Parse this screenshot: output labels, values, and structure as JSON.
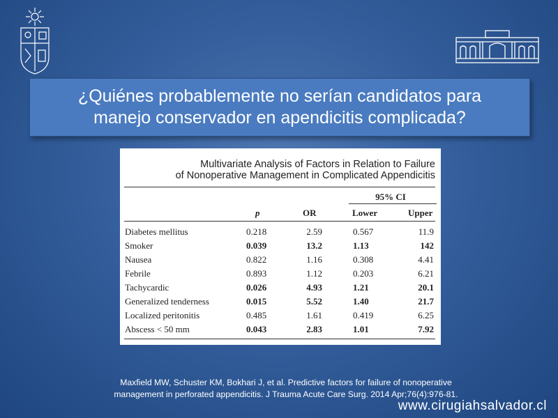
{
  "slide": {
    "title": "¿Quiénes probablemente no serían candidatos para\nmanejo conservador en apendicitis complicada?",
    "citation": "Maxfield MW, Schuster KM, Bokhari J, et al.  Predictive factors for failure of nonoperative\nmanagement in perforated appendicitis. J Trauma Acute Care Surg. 2014 Apr;76(4):976-81.",
    "website": "www.cirugiahsalvador.cl"
  },
  "table": {
    "caption": "Multivariate Analysis of Factors in Relation to Failure\nof Nonoperative Management in Complicated Appendicitis",
    "ci_header": "95% CI",
    "columns": {
      "p": "p",
      "or": "OR",
      "lower": "Lower",
      "upper": "Upper"
    },
    "rows": [
      {
        "label": "Diabetes mellitus",
        "p": "0.218",
        "or": "2.59",
        "lower": "0.567",
        "upper": "11.9",
        "bold": false
      },
      {
        "label": "Smoker",
        "p": "0.039",
        "or": "13.2",
        "lower": "1.13",
        "upper": "142",
        "bold": true
      },
      {
        "label": "Nausea",
        "p": "0.822",
        "or": "1.16",
        "lower": "0.308",
        "upper": "4.41",
        "bold": false
      },
      {
        "label": "Febrile",
        "p": "0.893",
        "or": "1.12",
        "lower": "0.203",
        "upper": "6.21",
        "bold": false
      },
      {
        "label": "Tachycardic",
        "p": "0.026",
        "or": "4.93",
        "lower": "1.21",
        "upper": "20.1",
        "bold": true
      },
      {
        "label": "Generalized tenderness",
        "p": "0.015",
        "or": "5.52",
        "lower": "1.40",
        "upper": "21.7",
        "bold": true
      },
      {
        "label": "Localized peritonitis",
        "p": "0.485",
        "or": "1.61",
        "lower": "0.419",
        "upper": "6.25",
        "bold": false
      },
      {
        "label": "Abscess < 50 mm",
        "p": "0.043",
        "or": "2.83",
        "lower": "1.01",
        "upper": "7.92",
        "bold": true
      }
    ]
  },
  "colors": {
    "background": "#345f9c",
    "title_box": "#4a7bc0",
    "text": "#ffffff"
  },
  "icons": [
    "university-seal-icon",
    "building-logo-icon"
  ]
}
